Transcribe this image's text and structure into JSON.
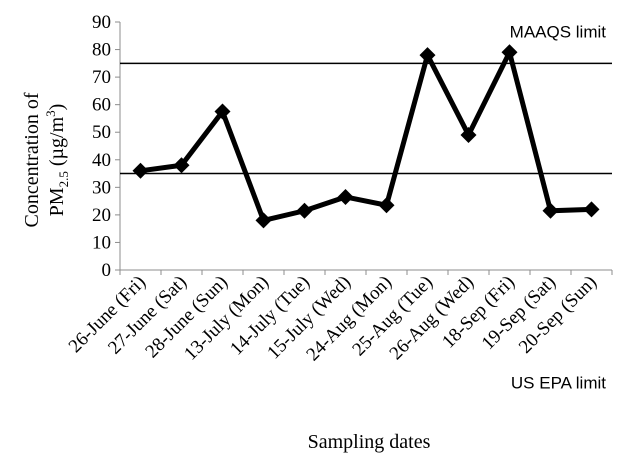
{
  "chart_data": {
    "type": "line",
    "categories": [
      "26-June (Fri)",
      "27-June (Sat)",
      "28-June (Sun)",
      "13-July (Mon)",
      "14-July (Tue)",
      "15-July (Wed)",
      "24-Aug (Mon)",
      "25-Aug (Tue)",
      "26-Aug (Wed)",
      "18-Sep (Fri)",
      "19-Sep (Sat)",
      "20-Sep (Sun)"
    ],
    "series": [
      {
        "values": [
          36,
          38,
          57.5,
          18,
          21.5,
          26.5,
          23.5,
          78,
          49,
          79,
          21.5,
          22
        ]
      }
    ],
    "reference_lines": [
      {
        "label": "MAAQS limit",
        "value": 75
      },
      {
        "label": "US EPA limit",
        "value": 35
      }
    ],
    "ylim": [
      0,
      90
    ],
    "yticks": [
      0,
      10,
      20,
      30,
      40,
      50,
      60,
      70,
      80,
      90
    ],
    "xlabel": "Sampling dates",
    "ylabel": {
      "line1": "Concentration of",
      "pm": "PM",
      "pm_sub": "2.5",
      "unit_open": " (µg/m",
      "unit_sup": "3",
      "unit_close": ")"
    },
    "grid": false,
    "legend": "none",
    "colors": {
      "series": "#000000",
      "reference": "#000000",
      "axis": "#8c8c8c"
    }
  }
}
